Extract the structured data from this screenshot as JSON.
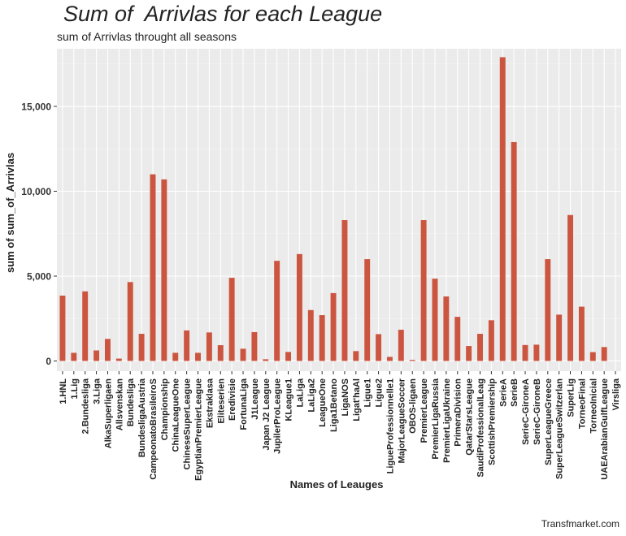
{
  "chart_data": {
    "type": "bar",
    "title": "Sum of  Arrivlas for each League",
    "subtitle": "sum of Arrivlas throught all seasons",
    "xlabel": "Names of Leauges",
    "ylabel": "sum of sum_of_Arrivlas",
    "caption": "Transfmarket.com",
    "ylim": [
      -600,
      18400
    ],
    "yticks": [
      0,
      5000,
      10000,
      15000
    ],
    "ytick_labels": [
      "0",
      "5,000",
      "10,000",
      "15,000"
    ],
    "bar_color": "#CC5540",
    "categories": [
      "1.HNL",
      "1.Lig",
      "2.Bundesliga",
      "3.Liga",
      "AlkaSuperligaen",
      "Allsvenskan",
      "Bundesliga",
      "BundesligaAustria",
      "CampeonatoBrasileiroS",
      "Championship",
      "ChinaLeagueOne",
      "ChineseSuperLeague",
      "EgyptianPremierLeague",
      "Ekstraklasa",
      "Eliteserien",
      "Eredivisie",
      "FortunaLiga",
      "J1League",
      "Japan J2 League",
      "JupilerProLeague",
      "KLeague1",
      "LaLiga",
      "LaLiga2",
      "LeagueOne",
      "Liga1Betano",
      "LigaNOS",
      "Ligat'haAl",
      "Ligue1",
      "Ligue2",
      "LigueProfessionnelle1",
      "MajorLeagueSoccer",
      "OBOS-ligaen",
      "PremierLeague",
      "PremierLigaRussia",
      "PremierLigaUkraine",
      "PrimeraDivision",
      "QatarStarsLeague",
      "SaudiProfessionalLeag",
      "ScottishPremiership",
      "SerieA",
      "SerieB",
      "SerieC-GironeA",
      "SerieC-GironeB",
      "SuperLeagueGreece",
      "SuperLeagueSwitzerlan",
      "SuperLig",
      "TorneoFinal",
      "TorneoInicial",
      "UAEArabianGulfLeague",
      "Virsliga"
    ],
    "values": [
      3850,
      480,
      4100,
      620,
      1300,
      140,
      4650,
      1600,
      11000,
      10700,
      480,
      1800,
      480,
      1680,
      930,
      4900,
      720,
      1700,
      100,
      5900,
      530,
      6300,
      3000,
      2700,
      4000,
      8300,
      580,
      6000,
      1580,
      240,
      1840,
      60,
      8300,
      4850,
      3800,
      2600,
      880,
      1600,
      2400,
      17900,
      12900,
      940,
      960,
      6000,
      2730,
      8600,
      3200,
      520,
      820,
      0
    ]
  }
}
